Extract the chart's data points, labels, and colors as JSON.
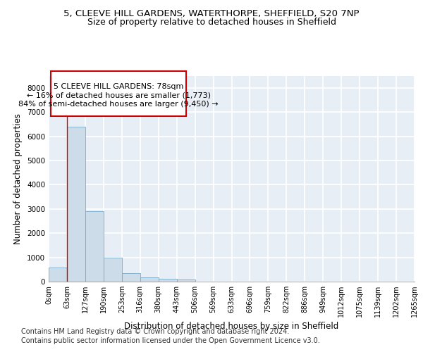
{
  "title_line1": "5, CLEEVE HILL GARDENS, WATERTHORPE, SHEFFIELD, S20 7NP",
  "title_line2": "Size of property relative to detached houses in Sheffield",
  "xlabel": "Distribution of detached houses by size in Sheffield",
  "ylabel": "Number of detached properties",
  "bar_color": "#ccdce8",
  "bar_edge_color": "#7aaac8",
  "annotation_line1": "5 CLEEVE HILL GARDENS: 78sqm",
  "annotation_line2": "← 16% of detached houses are smaller (1,773)",
  "annotation_line3": "84% of semi-detached houses are larger (9,450) →",
  "bin_labels": [
    "0sqm",
    "63sqm",
    "127sqm",
    "190sqm",
    "253sqm",
    "316sqm",
    "380sqm",
    "443sqm",
    "506sqm",
    "569sqm",
    "633sqm",
    "696sqm",
    "759sqm",
    "822sqm",
    "886sqm",
    "949sqm",
    "1012sqm",
    "1075sqm",
    "1139sqm",
    "1202sqm",
    "1265sqm"
  ],
  "counts": [
    580,
    6380,
    2920,
    980,
    360,
    170,
    110,
    75,
    0,
    0,
    0,
    0,
    0,
    0,
    0,
    0,
    0,
    0,
    0,
    0
  ],
  "ylim": [
    0,
    8500
  ],
  "yticks": [
    0,
    1000,
    2000,
    3000,
    4000,
    5000,
    6000,
    7000,
    8000
  ],
  "background_color": "#e8eef5",
  "grid_color": "#ffffff",
  "footer_line1": "Contains HM Land Registry data © Crown copyright and database right 2024.",
  "footer_line2": "Contains public sector information licensed under the Open Government Licence v3.0.",
  "title_fontsize": 9.5,
  "subtitle_fontsize": 9,
  "axis_label_fontsize": 8.5,
  "tick_fontsize": 7,
  "annotation_fontsize": 8,
  "footer_fontsize": 7
}
